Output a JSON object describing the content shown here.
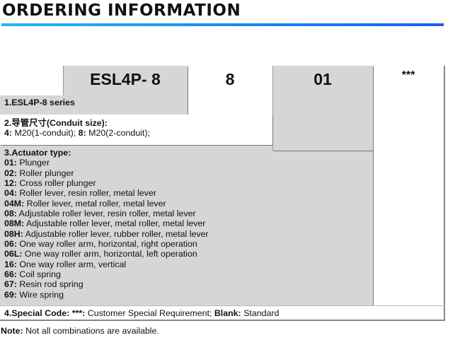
{
  "title": "ORDERING INFORMATION",
  "colors": {
    "gradient_start": "#22b8ee",
    "gradient_end": "#1a5ff0",
    "cell_gray": "#d6d6d6"
  },
  "codes": {
    "series": "ESL4P- 8",
    "conduit": "8",
    "actuator": "01",
    "special": "***"
  },
  "section1": {
    "label": "1.ESL4P-8 series"
  },
  "section2": {
    "label": "2.导管尺寸(Conduit size):",
    "items": [
      {
        "code": "4:",
        "text": " M20(1-conduit); "
      },
      {
        "code": "8:",
        "text": " M20(2-conduit);"
      }
    ]
  },
  "section3": {
    "label": "3.Actuator type:",
    "items": [
      {
        "code": "01:",
        "text": " Plunger"
      },
      {
        "code": "02:",
        "text": " Roller plunger"
      },
      {
        "code": "12:",
        "text": " Cross roller plunger"
      },
      {
        "code": "04:",
        "text": " Roller lever, resin roller, metal lever"
      },
      {
        "code": "04M:",
        "text": " Roller lever, metal roller, metal lever"
      },
      {
        "code": "08:",
        "text": " Adjustable roller lever, resin roller, metal lever"
      },
      {
        "code": "08M:",
        "text": " Adjustable roller lever, metal roller, metal lever"
      },
      {
        "code": "08H:",
        "text": " Adjustable roller lever, rubber roller, metal lever"
      },
      {
        "code": "06:",
        "text": " One way roller arm, horizontal, right operation"
      },
      {
        "code": "06L:",
        "text": " One way roller arm, horizontal, left operation"
      },
      {
        "code": "16:",
        "text": " One way roller arm, vertical"
      },
      {
        "code": "66:",
        "text": " Coil spring"
      },
      {
        "code": "67:",
        "text": " Resin rod spring"
      },
      {
        "code": "69:",
        "text": " Wire spring"
      }
    ]
  },
  "section4": {
    "label": "4.Special Code: ",
    "code1": "***:",
    "text1": " Customer Special Requirement; ",
    "code2": "Blank:",
    "text2": " Standard"
  },
  "note": {
    "label": "Note:",
    "text": " Not all combinations are available."
  }
}
